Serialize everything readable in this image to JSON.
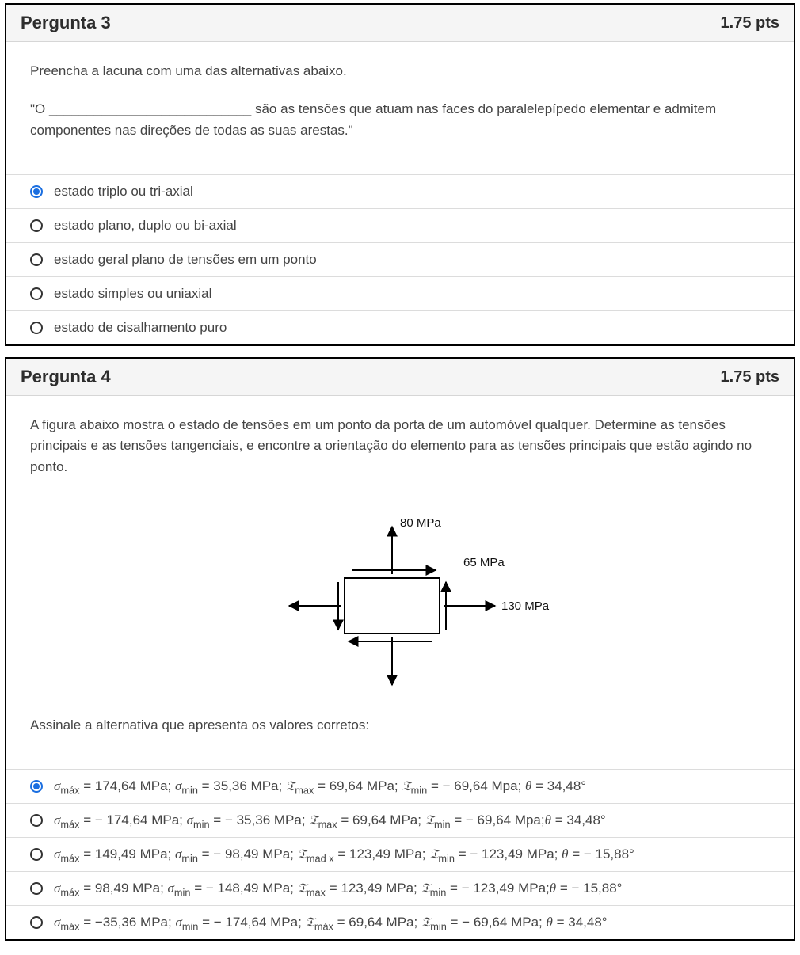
{
  "questions": [
    {
      "number": "Pergunta 3",
      "points": "1.75 pts",
      "prompt_intro": "Preencha a lacuna com uma das alternativas abaixo.",
      "statement": "\"O ___________________________ são as tensões que atuam nas faces do paralelepípedo elementar e admitem componentes nas direções de todas as suas arestas.\"",
      "selected_index": 0,
      "options": [
        "estado triplo ou tri-axial",
        "estado plano, duplo ou bi-axial",
        "estado geral plano de tensões em um ponto",
        "estado simples ou uniaxial",
        "estado de cisalhamento puro"
      ]
    },
    {
      "number": "Pergunta 4",
      "points": "1.75 pts",
      "prompt_main": "A figura abaixo mostra o estado de tensões em um ponto da porta de um automóvel qualquer. Determine as tensões principais e as tensões tangenciais, e encontre a orientação do elemento para as tensões principais que estão agindo no ponto.",
      "diagram": {
        "sigma_y_label": "80 MPa",
        "tau_label": "65 MPa",
        "sigma_x_label": "130 MPa",
        "stroke": "#000000",
        "stroke_width": 2
      },
      "choose_text": "Assinale a alternativa que apresenta os valores corretos:",
      "selected_index": 0,
      "answers": [
        {
          "sigma_max": "174,64 MPa",
          "sigma_max_sign": "",
          "sigma_min": "35,36 MPa",
          "sigma_min_sign": "",
          "tau_max": "69,64 MPa",
          "tau_max_sign": "",
          "tau_max_sub": "max",
          "tau_min": "− 69,64 Mpa",
          "theta": "34,48°",
          "sep_before_theta": "; "
        },
        {
          "sigma_max": "− 174,64 MPa",
          "sigma_max_sign": "",
          "sigma_min": "− 35,36 MPa",
          "sigma_min_sign": "",
          "tau_max": "69,64 MPa",
          "tau_max_sign": "",
          "tau_max_sub": "max",
          "tau_min": "− 69,64 Mpa",
          "theta": "34,48°",
          "sep_before_theta": ";"
        },
        {
          "sigma_max": "149,49 MPa",
          "sigma_max_sign": "",
          "sigma_min": "− 98,49 MPa",
          "sigma_min_sign": "",
          "tau_max": "123,49 MPa",
          "tau_max_sign": "",
          "tau_max_sub": "mad x",
          "tau_min": "− 123,49 MPa",
          "theta": "− 15,88°",
          "sep_before_theta": "; "
        },
        {
          "sigma_max": "98,49 MPa",
          "sigma_max_sign": "",
          "sigma_min": "− 148,49 MPa",
          "sigma_min_sign": "",
          "tau_max": "123,49 MPa",
          "tau_max_sign": "",
          "tau_max_sub": "max",
          "tau_min": "− 123,49 MPa",
          "theta": "− 15,88°",
          "sep_before_theta": ";"
        },
        {
          "sigma_max": "−35,36 MPa",
          "sigma_max_sign": "",
          "sigma_min": "− 174,64 MPa",
          "sigma_min_sign": "",
          "tau_max": " 69,64 MPa",
          "tau_max_sign": "",
          "tau_max_sub": "máx",
          "tau_min": "− 69,64 MPa",
          "theta": "34,48°",
          "sep_before_theta": "; "
        }
      ]
    }
  ],
  "symbols": {
    "sigma": "σ",
    "tau_math": "𝔗"
  }
}
